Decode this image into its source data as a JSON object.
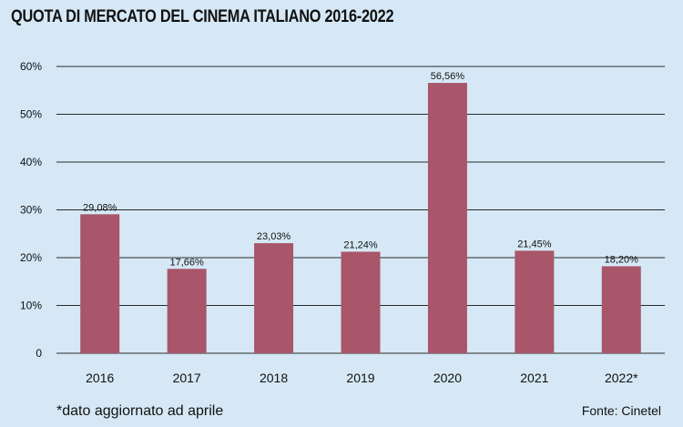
{
  "chart_data": {
    "type": "bar",
    "title": "QUOTA DI MERCATO DEL CINEMA ITALIANO 2016-2022",
    "categories": [
      "2016",
      "2017",
      "2018",
      "2019",
      "2020",
      "2021",
      "2022*"
    ],
    "values": [
      29.08,
      17.66,
      23.03,
      21.24,
      56.56,
      21.45,
      18.2
    ],
    "value_labels": [
      "29,08%",
      "17,66%",
      "23,03%",
      "21,24%",
      "56,56%",
      "21,45%",
      "18,20%"
    ],
    "y_ticks": [
      0,
      10,
      20,
      30,
      40,
      50,
      60
    ],
    "y_tick_labels": [
      "0",
      "10%",
      "20%",
      "30%",
      "40%",
      "50%",
      "60%"
    ],
    "ylim": [
      0,
      60
    ],
    "xlabel": "",
    "ylabel": "",
    "grid": true,
    "bar_color": "#a9566a",
    "grid_color": "#2b2b2b"
  },
  "footnote": "*dato aggiornato ad aprile",
  "source": "Fonte: Cinetel"
}
